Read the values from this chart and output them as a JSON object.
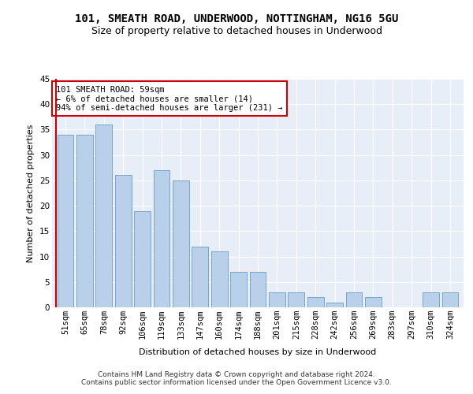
{
  "title": "101, SMEATH ROAD, UNDERWOOD, NOTTINGHAM, NG16 5GU",
  "subtitle": "Size of property relative to detached houses in Underwood",
  "xlabel": "Distribution of detached houses by size in Underwood",
  "ylabel": "Number of detached properties",
  "categories": [
    "51sqm",
    "65sqm",
    "78sqm",
    "92sqm",
    "106sqm",
    "119sqm",
    "133sqm",
    "147sqm",
    "160sqm",
    "174sqm",
    "188sqm",
    "201sqm",
    "215sqm",
    "228sqm",
    "242sqm",
    "256sqm",
    "269sqm",
    "283sqm",
    "297sqm",
    "310sqm",
    "324sqm"
  ],
  "values": [
    34,
    34,
    36,
    26,
    19,
    27,
    25,
    12,
    11,
    7,
    7,
    3,
    3,
    2,
    1,
    3,
    2,
    0,
    0,
    3,
    3
  ],
  "bar_color": "#b8d0ea",
  "bar_edge_color": "#6a9cc0",
  "highlight_color": "#cc0000",
  "annotation_text": "101 SMEATH ROAD: 59sqm\n← 6% of detached houses are smaller (14)\n94% of semi-detached houses are larger (231) →",
  "annotation_box_color": "#ffffff",
  "annotation_box_edge": "#cc0000",
  "ylim": [
    0,
    45
  ],
  "yticks": [
    0,
    5,
    10,
    15,
    20,
    25,
    30,
    35,
    40,
    45
  ],
  "background_color": "#e8eef8",
  "grid_color": "#ffffff",
  "footer1": "Contains HM Land Registry data © Crown copyright and database right 2024.",
  "footer2": "Contains public sector information licensed under the Open Government Licence v3.0.",
  "title_fontsize": 10,
  "subtitle_fontsize": 9,
  "axis_label_fontsize": 8,
  "tick_fontsize": 7.5,
  "annotation_fontsize": 7.5,
  "footer_fontsize": 6.5
}
